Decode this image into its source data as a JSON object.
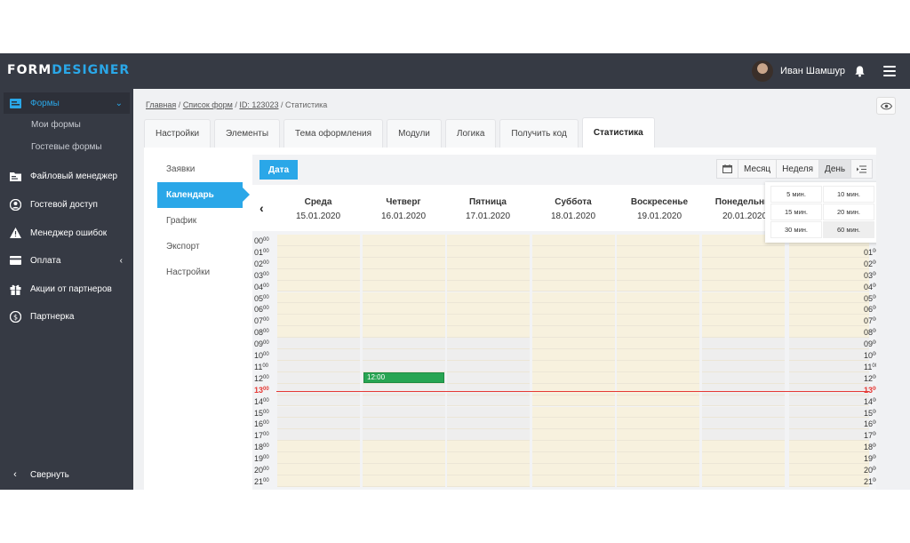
{
  "app": {
    "logo_part1": "FORM",
    "logo_part2": "DESIGNER",
    "user_name": "Иван Шамшур",
    "accent_color": "#2aa7e8",
    "icons": [
      "bell-icon",
      "menu-icon",
      "eye-icon"
    ]
  },
  "sidebar": {
    "items": [
      {
        "label": "Формы",
        "icon": "forms-icon"
      },
      {
        "label": "Файловый менеджер",
        "icon": "file-manager-icon"
      },
      {
        "label": "Гостевой доступ",
        "icon": "user-circle-icon"
      },
      {
        "label": "Менеджер ошибок",
        "icon": "warning-icon"
      },
      {
        "label": "Оплата",
        "icon": "card-icon"
      },
      {
        "label": "Акции от партнеров",
        "icon": "gift-icon"
      },
      {
        "label": "Партнерка",
        "icon": "dollar-icon"
      }
    ],
    "subitems": [
      "Мои формы",
      "Гостевые формы"
    ],
    "collapse_label": "Свернуть"
  },
  "breadcrumb": {
    "home": "Главная",
    "forms": "Список форм",
    "form_id": "ID: 123023",
    "sep": "/",
    "current": "Статистика"
  },
  "tabs": [
    "Настройки",
    "Элементы",
    "Тема оформления",
    "Модули",
    "Логика",
    "Получить код",
    "Статистика"
  ],
  "subnav": [
    "Заявки",
    "Календарь",
    "График",
    "Экспорт",
    "Настройки"
  ],
  "calendar": {
    "date_button": "Дата",
    "views": [
      "Месяц",
      "Неделя",
      "День"
    ],
    "active_view": "День",
    "days": [
      {
        "name": "Среда",
        "date": "15.01.2020"
      },
      {
        "name": "Четверг",
        "date": "16.01.2020"
      },
      {
        "name": "Пятница",
        "date": "17.01.2020"
      },
      {
        "name": "Суббота",
        "date": "18.01.2020"
      },
      {
        "name": "Воскресенье",
        "date": "19.01.2020"
      },
      {
        "name": "Понедельник",
        "date": "20.01.2020"
      }
    ],
    "hours": [
      "00",
      "01",
      "02",
      "03",
      "04",
      "05",
      "06",
      "07",
      "08",
      "09",
      "10",
      "11",
      "12",
      "13",
      "14",
      "15",
      "16",
      "17",
      "18",
      "19",
      "20",
      "21"
    ],
    "minutes": "00",
    "current_hour": "13",
    "event": {
      "label": "12:00",
      "day_index": 1
    },
    "interval_options": [
      "5 мин.",
      "10 мин.",
      "15 мин.",
      "20 мин.",
      "30 мин.",
      "60 мин."
    ],
    "interval_selected": "60 мин.",
    "now_color": "#e53935",
    "event_color": "#27a553"
  }
}
